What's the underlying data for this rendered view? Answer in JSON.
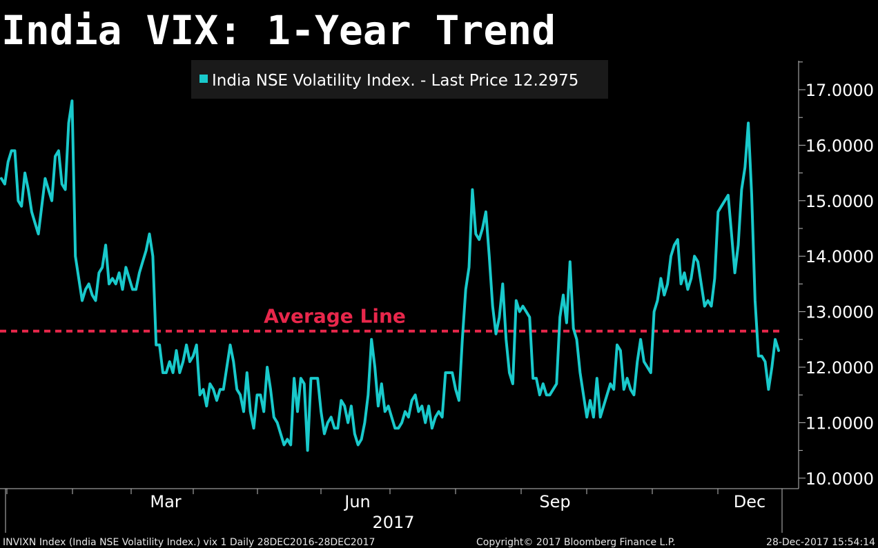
{
  "title": "India VIX: 1-Year Trend",
  "colors": {
    "background": "#000000",
    "series": "#19c9cb",
    "average_line": "#e8274b",
    "axis": "#bfbfbf",
    "legend_bg": "#1a1a1a"
  },
  "chart_data": {
    "type": "line",
    "title": "India VIX: 1-Year Trend",
    "xlabel": "",
    "ylabel": "",
    "ylim": [
      9.8,
      17.6
    ],
    "y_ticks": [
      "17.0000",
      "16.0000",
      "15.0000",
      "14.0000",
      "13.0000",
      "12.0000",
      "11.0000",
      "10.0000"
    ],
    "y_tick_values": [
      17,
      16,
      15,
      14,
      13,
      12,
      11,
      10
    ],
    "x_tick_labels": [
      "Mar",
      "Jun",
      "Sep",
      "Dec"
    ],
    "x_year_label": "2017",
    "grid": false,
    "legend_position": "top-center",
    "series": [
      {
        "name": "India NSE Volatility Index. - Last Price 12.2975",
        "values": [
          15.4,
          15.3,
          15.7,
          15.9,
          15.9,
          15.0,
          14.9,
          15.5,
          15.2,
          14.8,
          14.6,
          14.4,
          14.9,
          15.4,
          15.2,
          15.0,
          15.8,
          15.9,
          15.3,
          15.2,
          16.4,
          16.8,
          14.0,
          13.6,
          13.2,
          13.4,
          13.5,
          13.3,
          13.2,
          13.7,
          13.8,
          14.2,
          13.5,
          13.6,
          13.5,
          13.7,
          13.4,
          13.8,
          13.6,
          13.4,
          13.4,
          13.7,
          13.9,
          14.1,
          14.4,
          14.0,
          12.4,
          12.4,
          11.9,
          11.9,
          12.1,
          11.9,
          12.3,
          11.9,
          12.1,
          12.4,
          12.1,
          12.2,
          12.4,
          11.5,
          11.6,
          11.3,
          11.7,
          11.6,
          11.4,
          11.6,
          11.6,
          12.0,
          12.4,
          12.1,
          11.6,
          11.5,
          11.2,
          11.9,
          11.2,
          10.9,
          11.5,
          11.5,
          11.2,
          12.0,
          11.6,
          11.1,
          11.0,
          10.8,
          10.6,
          10.7,
          10.6,
          11.8,
          11.2,
          11.8,
          11.7,
          10.5,
          11.8,
          11.8,
          11.8,
          11.2,
          10.8,
          11.0,
          11.1,
          10.9,
          10.9,
          11.4,
          11.3,
          11.0,
          11.3,
          10.8,
          10.6,
          10.7,
          11.0,
          11.5,
          12.5,
          12.0,
          11.3,
          11.7,
          11.2,
          11.3,
          11.1,
          10.9,
          10.9,
          11.0,
          11.2,
          11.1,
          11.4,
          11.5,
          11.2,
          11.3,
          11.0,
          11.3,
          10.9,
          11.1,
          11.2,
          11.1,
          11.9,
          11.9,
          11.9,
          11.6,
          11.4,
          12.5,
          13.4,
          13.8,
          15.2,
          14.4,
          14.3,
          14.5,
          14.8,
          14.0,
          13.1,
          12.6,
          12.9,
          13.5,
          12.5,
          11.9,
          11.7,
          13.2,
          13.0,
          13.1,
          13.0,
          12.9,
          11.8,
          11.8,
          11.5,
          11.7,
          11.5,
          11.5,
          11.6,
          11.7,
          12.9,
          13.3,
          12.8,
          13.9,
          12.7,
          12.5,
          11.9,
          11.5,
          11.1,
          11.4,
          11.1,
          11.8,
          11.1,
          11.3,
          11.5,
          11.7,
          11.6,
          12.4,
          12.3,
          11.6,
          11.8,
          11.6,
          11.5,
          12.1,
          12.5,
          12.1,
          12.0,
          11.9,
          13.0,
          13.2,
          13.6,
          13.3,
          13.5,
          14.0,
          14.2,
          14.3,
          13.5,
          13.7,
          13.4,
          13.6,
          14.0,
          13.9,
          13.5,
          13.1,
          13.2,
          13.1,
          13.6,
          14.8,
          14.9,
          15.0,
          15.1,
          14.4,
          13.7,
          14.2,
          15.2,
          15.6,
          16.4,
          15.1,
          13.2,
          12.2,
          12.2,
          12.1,
          11.6,
          12.0,
          12.5,
          12.3
        ]
      }
    ],
    "annotations": [
      {
        "label": "Average Line",
        "y": 12.65
      }
    ]
  },
  "legend": {
    "label": "India NSE Volatility Index. - Last Price 12.2975"
  },
  "footer": {
    "left": "INVIXN Index (India NSE Volatility Index.) vix 1  Daily 28DEC2016-28DEC2017",
    "center": "Copyright© 2017 Bloomberg Finance L.P.",
    "right": "28-Dec-2017 15:54:14"
  }
}
